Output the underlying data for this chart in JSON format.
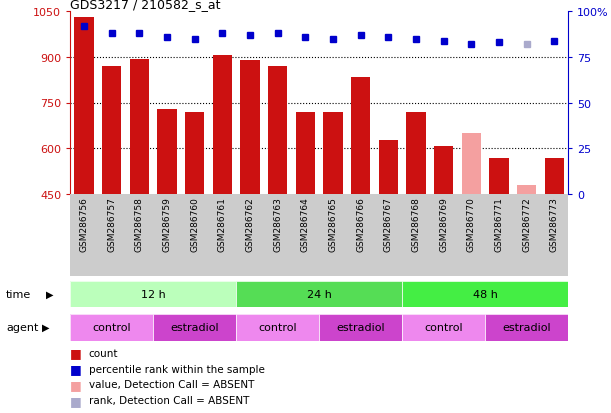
{
  "title": "GDS3217 / 210582_s_at",
  "samples": [
    "GSM286756",
    "GSM286757",
    "GSM286758",
    "GSM286759",
    "GSM286760",
    "GSM286761",
    "GSM286762",
    "GSM286763",
    "GSM286764",
    "GSM286765",
    "GSM286766",
    "GSM286767",
    "GSM286768",
    "GSM286769",
    "GSM286770",
    "GSM286771",
    "GSM286772",
    "GSM286773"
  ],
  "counts": [
    1030,
    870,
    893,
    730,
    718,
    905,
    890,
    870,
    718,
    718,
    835,
    625,
    718,
    608,
    650,
    568,
    478,
    568
  ],
  "absent": [
    false,
    false,
    false,
    false,
    false,
    false,
    false,
    false,
    false,
    false,
    false,
    false,
    false,
    false,
    true,
    false,
    true,
    false
  ],
  "percentile_ranks": [
    92,
    88,
    88,
    86,
    85,
    88,
    87,
    88,
    86,
    85,
    87,
    86,
    85,
    84,
    82,
    83,
    82,
    84
  ],
  "absent_rank": [
    false,
    false,
    false,
    false,
    false,
    false,
    false,
    false,
    false,
    false,
    false,
    false,
    false,
    false,
    false,
    false,
    true,
    false
  ],
  "ylim_left": [
    450,
    1050
  ],
  "ylim_right": [
    0,
    100
  ],
  "yticks_left": [
    450,
    600,
    750,
    900,
    1050
  ],
  "yticks_right": [
    0,
    25,
    50,
    75,
    100
  ],
  "gridlines": [
    600,
    750,
    900
  ],
  "bar_color_present": "#cc1111",
  "bar_color_absent": "#f4a0a0",
  "rank_color_present": "#0000cc",
  "rank_color_absent": "#aaaacc",
  "bg_color": "#ffffff",
  "sample_bg": "#cccccc",
  "time_group_defs": [
    {
      "start": 0,
      "end": 6,
      "color": "#bbffbb",
      "label": "12 h"
    },
    {
      "start": 6,
      "end": 12,
      "color": "#55dd55",
      "label": "24 h"
    },
    {
      "start": 12,
      "end": 18,
      "color": "#44ee44",
      "label": "48 h"
    }
  ],
  "agent_group_defs": [
    {
      "start": 0,
      "end": 3,
      "color": "#ee88ee",
      "label": "control"
    },
    {
      "start": 3,
      "end": 6,
      "color": "#cc44cc",
      "label": "estradiol"
    },
    {
      "start": 6,
      "end": 9,
      "color": "#ee88ee",
      "label": "control"
    },
    {
      "start": 9,
      "end": 12,
      "color": "#cc44cc",
      "label": "estradiol"
    },
    {
      "start": 12,
      "end": 15,
      "color": "#ee88ee",
      "label": "control"
    },
    {
      "start": 15,
      "end": 18,
      "color": "#cc44cc",
      "label": "estradiol"
    }
  ],
  "legend_items": [
    {
      "color": "#cc1111",
      "label": "count"
    },
    {
      "color": "#0000cc",
      "label": "percentile rank within the sample"
    },
    {
      "color": "#f4a0a0",
      "label": "value, Detection Call = ABSENT"
    },
    {
      "color": "#aaaacc",
      "label": "rank, Detection Call = ABSENT"
    }
  ],
  "figsize": [
    6.11,
    4.14
  ],
  "dpi": 100
}
